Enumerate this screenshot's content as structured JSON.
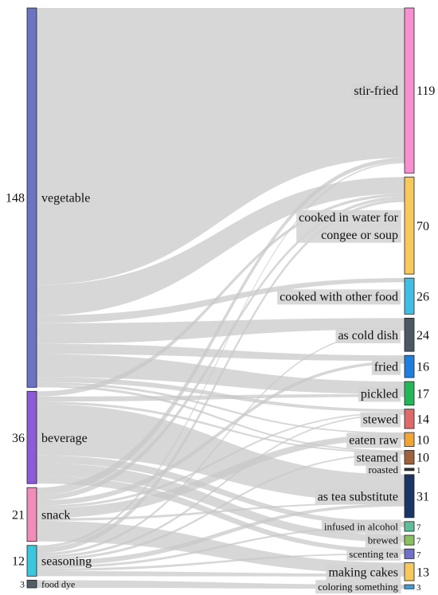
{
  "diagram": {
    "type": "sankey",
    "source_nodes": [
      {
        "id": "vegetable",
        "label": "vegetable",
        "value": 148,
        "value_label": "148",
        "color": "#6a73c4"
      },
      {
        "id": "beverage",
        "label": "beverage",
        "value": 36,
        "value_label": "36",
        "color": "#8d5ad8"
      },
      {
        "id": "snack",
        "label": "snack",
        "value": 21,
        "value_label": "21",
        "color": "#f28cb8"
      },
      {
        "id": "seasoning",
        "label": "seasoning",
        "value": 12,
        "value_label": "12",
        "color": "#3ac7df"
      },
      {
        "id": "food_dye",
        "label": "food dye",
        "value": 3,
        "value_label": "3",
        "color": "#555d66"
      }
    ],
    "target_nodes": [
      {
        "id": "stir_fried",
        "label": "stir-fried",
        "value": 119,
        "value_label": "119",
        "color": "#f98fd0"
      },
      {
        "id": "cooked_water",
        "label": "cooked in water for|congee or soup",
        "value": 70,
        "value_label": "70",
        "color": "#f7c85a"
      },
      {
        "id": "cooked_other",
        "label": "cooked with other food",
        "value": 26,
        "value_label": "26",
        "color": "#3fbfe6"
      },
      {
        "id": "cold_dish",
        "label": "as cold dish",
        "value": 24,
        "value_label": "24",
        "color": "#4b5862"
      },
      {
        "id": "fried",
        "label": "fried",
        "value": 16,
        "value_label": "16",
        "color": "#1e7fe0"
      },
      {
        "id": "pickled",
        "label": "pickled",
        "value": 17,
        "value_label": "17",
        "color": "#22b85a"
      },
      {
        "id": "stewed",
        "label": "stewed",
        "value": 14,
        "value_label": "14",
        "color": "#e06a6a"
      },
      {
        "id": "eaten_raw",
        "label": "eaten raw",
        "value": 10,
        "value_label": "10",
        "color": "#f3a533"
      },
      {
        "id": "steamed",
        "label": "steamed",
        "value": 10,
        "value_label": "10",
        "color": "#a0623a"
      },
      {
        "id": "roasted",
        "label": "roasted",
        "value": 1,
        "value_label": "1",
        "color": "#333333"
      },
      {
        "id": "tea_sub",
        "label": "as tea substitute",
        "value": 31,
        "value_label": "31",
        "color": "#1b3566"
      },
      {
        "id": "infused",
        "label": "infused in alcohol",
        "value": 7,
        "value_label": "7",
        "color": "#5fbf9b"
      },
      {
        "id": "brewed",
        "label": "brewed",
        "value": 7,
        "value_label": "7",
        "color": "#8ac060"
      },
      {
        "id": "scenting",
        "label": "scenting tea",
        "value": 7,
        "value_label": "7",
        "color": "#6e70cc"
      },
      {
        "id": "cakes",
        "label": "making cakes",
        "value": 13,
        "value_label": "13",
        "color": "#f7c85a"
      },
      {
        "id": "coloring",
        "label": "coloring something",
        "value": 3,
        "value_label": "3",
        "color": "#3aa0dc"
      }
    ],
    "links": [
      {
        "source": "vegetable",
        "target": "stir_fried",
        "value": 108
      },
      {
        "source": "vegetable",
        "target": "cooked_water",
        "value": 12
      },
      {
        "source": "vegetable",
        "target": "cooked_other",
        "value": 3
      },
      {
        "source": "vegetable",
        "target": "cold_dish",
        "value": 8
      },
      {
        "source": "vegetable",
        "target": "fried",
        "value": 4
      },
      {
        "source": "vegetable",
        "target": "pickled",
        "value": 9
      },
      {
        "source": "vegetable",
        "target": "stewed",
        "value": 2
      },
      {
        "source": "vegetable",
        "target": "eaten_raw",
        "value": 1
      },
      {
        "source": "vegetable",
        "target": "steamed",
        "value": 1
      },
      {
        "source": "beverage",
        "target": "cooked_water",
        "value": 2
      },
      {
        "source": "beverage",
        "target": "pickled",
        "value": 2
      },
      {
        "source": "beverage",
        "target": "steamed",
        "value": 1
      },
      {
        "source": "beverage",
        "target": "tea_sub",
        "value": 20
      },
      {
        "source": "beverage",
        "target": "infused",
        "value": 3
      },
      {
        "source": "beverage",
        "target": "brewed",
        "value": 5
      },
      {
        "source": "beverage",
        "target": "scenting",
        "value": 3
      },
      {
        "source": "snack",
        "target": "stir_fried",
        "value": 3
      },
      {
        "source": "snack",
        "target": "cooked_water",
        "value": 2
      },
      {
        "source": "snack",
        "target": "fried",
        "value": 2
      },
      {
        "source": "snack",
        "target": "stewed",
        "value": 1
      },
      {
        "source": "snack",
        "target": "eaten_raw",
        "value": 4
      },
      {
        "source": "snack",
        "target": "tea_sub",
        "value": 1
      },
      {
        "source": "snack",
        "target": "cakes",
        "value": 8
      },
      {
        "source": "seasoning",
        "target": "stir_fried",
        "value": 1
      },
      {
        "source": "seasoning",
        "target": "cooked_water",
        "value": 2
      },
      {
        "source": "seasoning",
        "target": "cold_dish",
        "value": 1
      },
      {
        "source": "seasoning",
        "target": "stewed",
        "value": 1
      },
      {
        "source": "seasoning",
        "target": "steamed",
        "value": 1
      },
      {
        "source": "seasoning",
        "target": "tea_sub",
        "value": 2
      },
      {
        "source": "seasoning",
        "target": "infused",
        "value": 1
      },
      {
        "source": "seasoning",
        "target": "scenting",
        "value": 1
      },
      {
        "source": "seasoning",
        "target": "cakes",
        "value": 2
      },
      {
        "source": "food_dye",
        "target": "coloring",
        "value": 3
      }
    ],
    "link_color": "#c8c8c8"
  }
}
